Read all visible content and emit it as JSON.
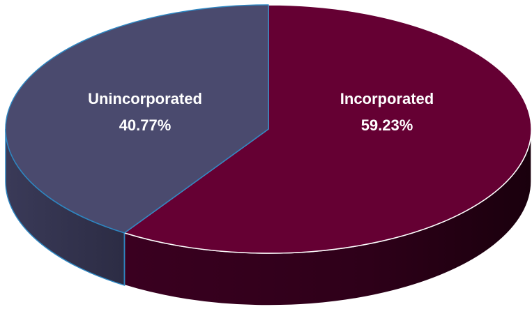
{
  "chart_data": {
    "type": "pie",
    "categories": [
      "Unincorporated",
      "Incorporated"
    ],
    "values": [
      40.77,
      59.23
    ],
    "value_labels": [
      "40.77%",
      "59.23%"
    ],
    "colors": [
      "#4A4A6E",
      "#650033"
    ],
    "style": "3d-tilted"
  }
}
